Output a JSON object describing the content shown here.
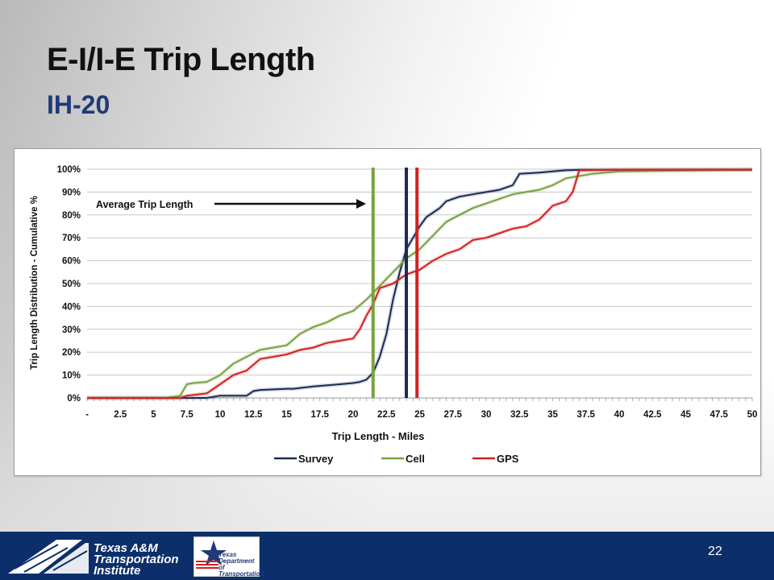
{
  "slide": {
    "title": "E-I/I-E Trip Length",
    "subtitle": "IH-20",
    "page_number": "22"
  },
  "footer": {
    "tti_logo_lines": [
      "Texas A&M",
      "Transportation",
      "Institute"
    ],
    "txdot_logo_lines": [
      "Texas",
      "Department",
      "of Transportation"
    ]
  },
  "colors": {
    "survey": "#1a2c55",
    "cell": "#77a23f",
    "gps": "#d32020",
    "grid": "#c8c8c8",
    "title_blue": "#1f3a78",
    "footer_blue": "#0c2f6b"
  },
  "chart_data": {
    "type": "line",
    "ylabel": "Trip Length Distribution - Cumulative %",
    "xlabel": "Trip Length  - Miles",
    "xlim": [
      0,
      50
    ],
    "ylim": [
      0,
      100
    ],
    "grid": true,
    "legend_position": "bottom",
    "x_tick_labels": [
      "-",
      "2.5",
      "5",
      "7.5",
      "10",
      "12.5",
      "15",
      "17.5",
      "20",
      "22.5",
      "25",
      "27.5",
      "30",
      "32.5",
      "35",
      "37.5",
      "40",
      "42.5",
      "45",
      "47.5",
      "50"
    ],
    "y_tick_labels": [
      "0%",
      "10%",
      "20%",
      "30%",
      "40%",
      "50%",
      "60%",
      "70%",
      "80%",
      "90%",
      "100%"
    ],
    "annotation": {
      "text": "Average Trip Length"
    },
    "average_lines": [
      {
        "series": "Cell",
        "x": 21.5
      },
      {
        "series": "Survey",
        "x": 24.0
      },
      {
        "series": "GPS",
        "x": 24.8
      }
    ],
    "series": [
      {
        "name": "Survey",
        "x": [
          0,
          9,
          10,
          11.5,
          12,
          12.5,
          13,
          15,
          15.5,
          17,
          18,
          19,
          20,
          20.5,
          21,
          21.5,
          22,
          22.5,
          23,
          23.5,
          24,
          24.5,
          25,
          25.5,
          26,
          26.5,
          27,
          28,
          29,
          30,
          31,
          32,
          32.5,
          34,
          35,
          36,
          37,
          50
        ],
        "y": [
          0,
          0,
          1,
          1,
          1,
          3,
          3.5,
          4,
          4,
          5,
          5.5,
          6,
          6.5,
          7,
          8,
          11,
          18,
          28,
          43,
          55,
          65,
          70,
          75,
          79,
          81,
          83,
          86,
          88,
          89,
          90,
          91,
          93,
          98,
          98.5,
          99,
          99.5,
          99.7,
          99.8
        ]
      },
      {
        "name": "Cell",
        "x": [
          0,
          6,
          7,
          7.5,
          8,
          9,
          10,
          11,
          12,
          13,
          14,
          15,
          16,
          17,
          18,
          19,
          20,
          21,
          22,
          23,
          24,
          25,
          26,
          27,
          28,
          29,
          30,
          31,
          32,
          33,
          34,
          35,
          36,
          37,
          38,
          40,
          50
        ],
        "y": [
          0,
          0,
          1,
          6,
          6.5,
          7,
          10,
          15,
          18,
          21,
          22,
          23,
          28,
          31,
          33,
          36,
          38,
          43,
          49,
          55,
          61,
          65,
          71,
          77,
          80,
          83,
          85,
          87,
          89,
          90,
          91,
          93,
          96,
          97,
          98,
          99,
          99.8
        ]
      },
      {
        "name": "GPS",
        "x": [
          0,
          7,
          7.5,
          9,
          10,
          11,
          12,
          13,
          14,
          15,
          16,
          17,
          18,
          19,
          20,
          20.5,
          21,
          21.5,
          22,
          23,
          24,
          25,
          26,
          27,
          28,
          29,
          30,
          31,
          32,
          33,
          34,
          35,
          36,
          36.5,
          37,
          40,
          50
        ],
        "y": [
          0,
          0,
          1,
          2,
          6,
          10,
          12,
          17,
          18,
          19,
          21,
          22,
          24,
          25,
          26,
          30,
          36,
          41,
          48,
          50,
          54,
          56,
          60,
          63,
          65,
          69,
          70,
          72,
          74,
          75,
          78,
          84,
          86,
          90,
          99.5,
          99.8,
          99.8
        ]
      }
    ]
  }
}
